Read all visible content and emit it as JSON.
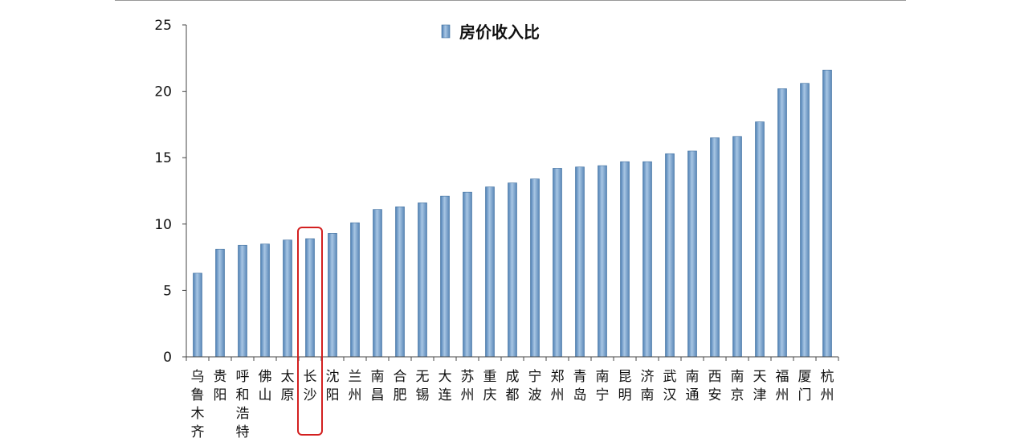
{
  "chart_data": {
    "type": "bar",
    "legend": "房价收入比",
    "legend_position": "top-center",
    "categories": [
      "乌鲁木齐",
      "贵阳",
      "呼和浩特",
      "佛山",
      "太原",
      "长沙",
      "沈阳",
      "兰州",
      "南昌",
      "合肥",
      "无锡",
      "大连",
      "苏州",
      "重庆",
      "成都",
      "宁波",
      "郑州",
      "青岛",
      "南宁",
      "昆明",
      "济南",
      "武汉",
      "南通",
      "西安",
      "南京",
      "天津",
      "福州",
      "厦门",
      "杭州"
    ],
    "series": [
      {
        "name": "房价收入比",
        "values": [
          6.3,
          8.1,
          8.4,
          8.5,
          8.8,
          8.9,
          9.3,
          10.1,
          11.1,
          11.3,
          11.6,
          12.1,
          12.4,
          12.8,
          13.1,
          13.4,
          14.2,
          14.3,
          14.4,
          14.7,
          14.7,
          15.3,
          15.5,
          16.5,
          16.6,
          17.7,
          20.2,
          20.6,
          21.6
        ]
      }
    ],
    "ylim": [
      0,
      25
    ],
    "yticks": [
      0,
      5,
      10,
      15,
      20,
      25
    ],
    "grid": false,
    "highlight": "长沙",
    "colors": {
      "bar": "#6f9bc8",
      "bar_edge": "#3f6f9f",
      "highlight": "#d32020",
      "axis": "#444444"
    }
  }
}
